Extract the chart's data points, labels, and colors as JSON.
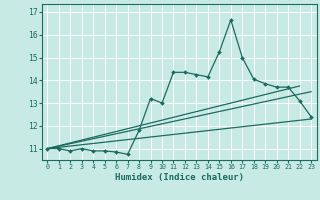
{
  "xlabel": "Humidex (Indice chaleur)",
  "background_color": "#c8eae4",
  "line_color": "#1a6b60",
  "grid_color": "#ffffff",
  "xlim": [
    -0.5,
    23.5
  ],
  "ylim": [
    10.5,
    17.35
  ],
  "xticks": [
    0,
    1,
    2,
    3,
    4,
    5,
    6,
    7,
    8,
    9,
    10,
    11,
    12,
    13,
    14,
    15,
    16,
    17,
    18,
    19,
    20,
    21,
    22,
    23
  ],
  "yticks": [
    11,
    12,
    13,
    14,
    15,
    16,
    17
  ],
  "curve1_x": [
    0,
    1,
    2,
    3,
    4,
    5,
    6,
    7,
    8,
    9,
    10,
    11,
    12,
    13,
    14,
    15,
    16,
    17,
    18,
    19,
    20,
    21,
    22,
    23
  ],
  "curve1_y": [
    11.0,
    11.0,
    10.9,
    11.0,
    10.9,
    10.9,
    10.85,
    10.75,
    11.8,
    13.2,
    13.0,
    14.35,
    14.35,
    14.25,
    14.15,
    15.25,
    16.65,
    15.0,
    14.05,
    13.85,
    13.7,
    13.7,
    13.1,
    12.4
  ],
  "line1_x": [
    0,
    23
  ],
  "line1_y": [
    11.0,
    12.3
  ],
  "line2_x": [
    0,
    23
  ],
  "line2_y": [
    11.0,
    13.5
  ],
  "line3_x": [
    0,
    22
  ],
  "line3_y": [
    11.0,
    13.75
  ]
}
